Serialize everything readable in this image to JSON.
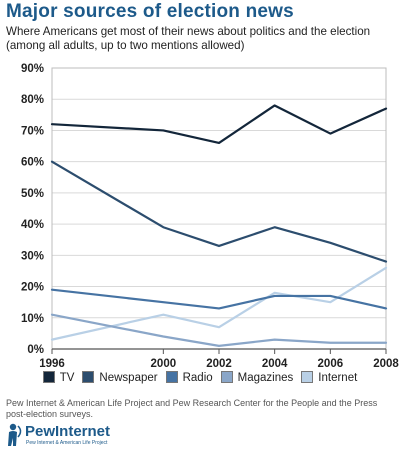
{
  "header": {
    "title": "Major sources of election news",
    "subtitle": "Where Americans get most of their news about politics and the election (among all adults, up to two mentions allowed)"
  },
  "chart_data": {
    "type": "line",
    "x": [
      1996,
      2000,
      2002,
      2004,
      2006,
      2008
    ],
    "xtick_labels": [
      "1996",
      "2000",
      "2002",
      "2004",
      "2006",
      "2008"
    ],
    "ylim": [
      0,
      90
    ],
    "yticks": [
      0,
      10,
      20,
      30,
      40,
      50,
      60,
      70,
      80,
      90
    ],
    "ytick_labels": [
      "0%",
      "10%",
      "20%",
      "30%",
      "40%",
      "50%",
      "60%",
      "70%",
      "80%",
      "90%"
    ],
    "grid": true,
    "legend_position": "bottom",
    "series": [
      {
        "name": "TV",
        "color": "#13263a",
        "values": [
          72,
          70,
          66,
          78,
          69,
          77
        ]
      },
      {
        "name": "Newspaper",
        "color": "#2c4d6e",
        "values": [
          60,
          39,
          33,
          39,
          34,
          28
        ]
      },
      {
        "name": "Radio",
        "color": "#4673a3",
        "values": [
          19,
          15,
          13,
          17,
          17,
          13
        ]
      },
      {
        "name": "Magazines",
        "color": "#8aa6c8",
        "values": [
          11,
          4,
          1,
          3,
          2,
          2
        ]
      },
      {
        "name": "Internet",
        "color": "#b9d0e6",
        "values": [
          3,
          11,
          7,
          18,
          15,
          26
        ]
      }
    ]
  },
  "source": "Pew Internet & American Life Project and Pew Research Center for the People and the Press post-election surveys.",
  "logo": {
    "wordmark": "PewInternet",
    "tagline": "Pew Internet & American Life Project"
  }
}
